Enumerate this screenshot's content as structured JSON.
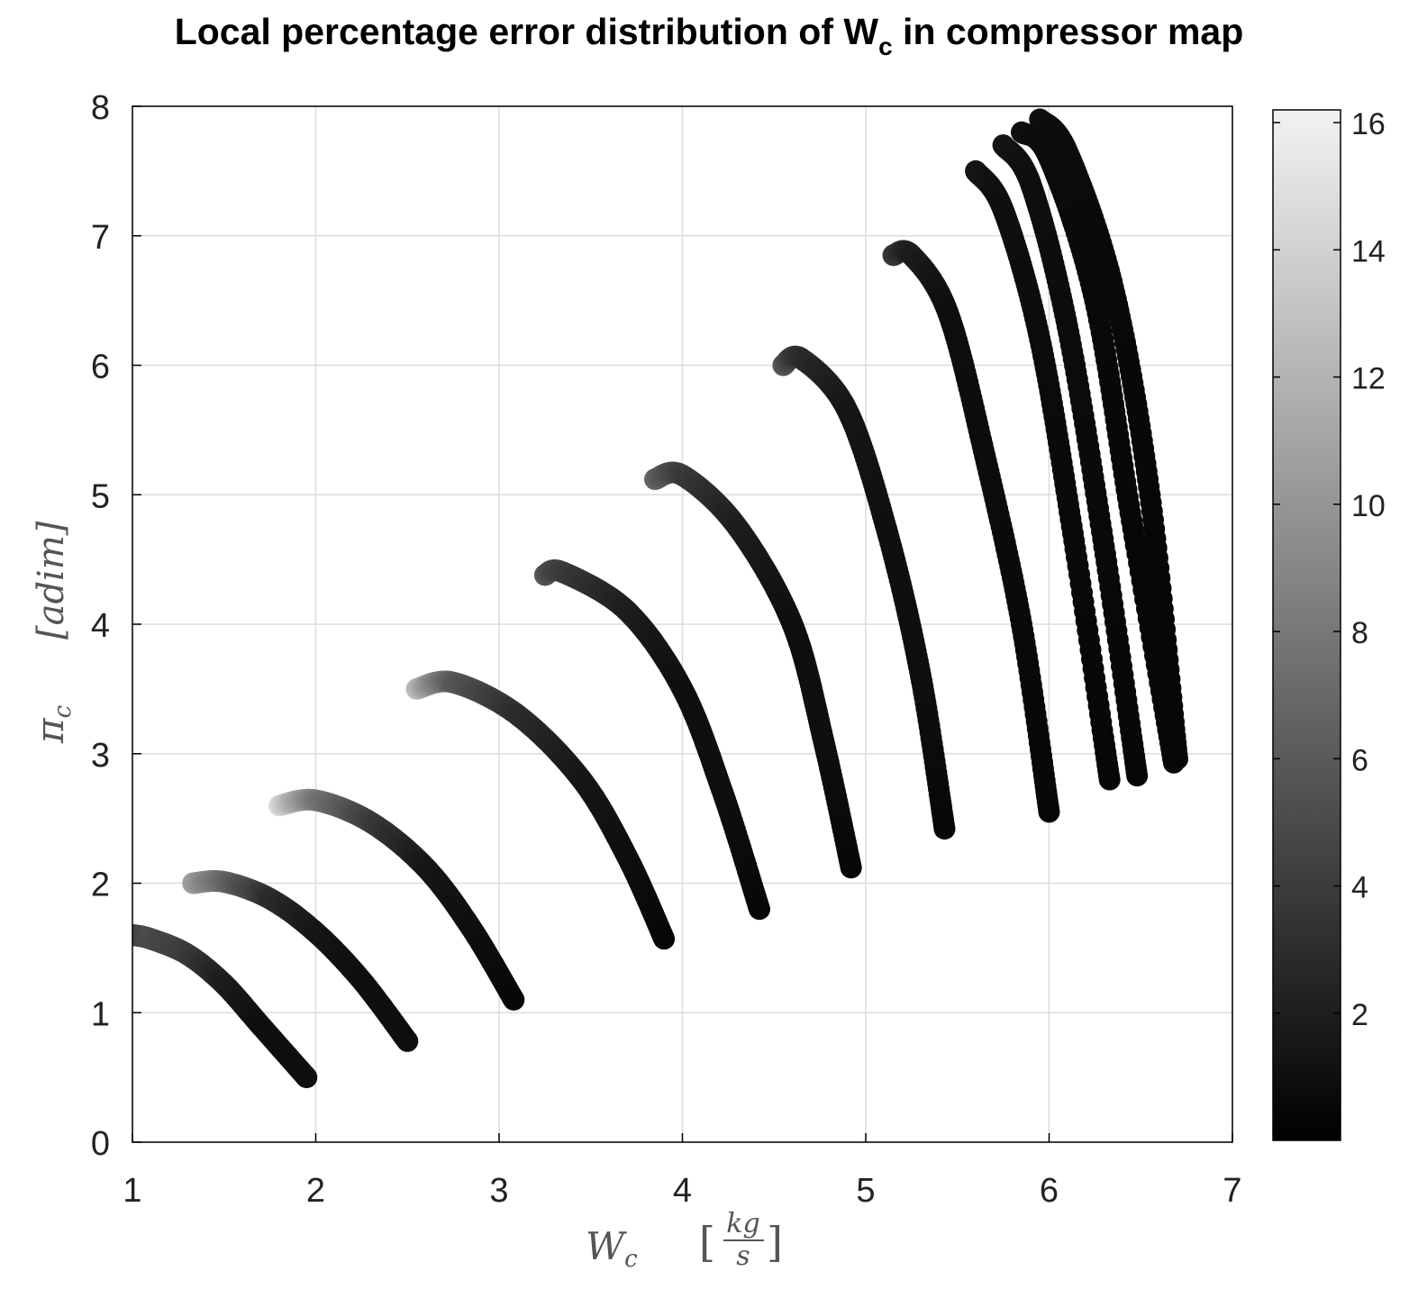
{
  "chart_data": {
    "type": "scatter",
    "title": "Local percentage error distribution of W",
    "title_subscript": "c",
    "title_suffix": " in compressor map",
    "xlabel": "W",
    "xlabel_subscript": "c",
    "xlabel_unit_numerator": "kg",
    "xlabel_unit_denominator": "s",
    "ylabel": "π",
    "ylabel_subscript": "c",
    "ylabel_unit": "[adim]",
    "xlim": [
      1,
      7
    ],
    "ylim": [
      0,
      8
    ],
    "xticks": [
      1,
      2,
      3,
      4,
      5,
      6,
      7
    ],
    "yticks": [
      0,
      1,
      2,
      3,
      4,
      5,
      6,
      7,
      8
    ],
    "grid": true,
    "colorbar": {
      "label_ticks": [
        2,
        4,
        6,
        8,
        10,
        12,
        14,
        16
      ],
      "range": [
        0,
        16.2
      ],
      "colormap": "gray",
      "low_color": "#000000",
      "high_color": "#f2f2f2"
    },
    "series": [
      {
        "x": [
          1.0,
          1.1,
          1.3,
          1.5,
          1.7,
          1.95
        ],
        "y": [
          1.6,
          1.57,
          1.45,
          1.22,
          0.9,
          0.5
        ],
        "error": [
          4,
          5,
          4,
          2,
          1,
          1
        ]
      },
      {
        "x": [
          1.33,
          1.5,
          1.75,
          2.0,
          2.25,
          2.5
        ],
        "y": [
          2.0,
          2.01,
          1.88,
          1.62,
          1.25,
          0.78
        ],
        "error": [
          11,
          7,
          3,
          1.5,
          1,
          1
        ]
      },
      {
        "x": [
          1.8,
          2.0,
          2.3,
          2.6,
          2.85,
          3.08
        ],
        "y": [
          2.6,
          2.64,
          2.47,
          2.12,
          1.65,
          1.1
        ],
        "error": [
          15,
          8,
          4,
          1.5,
          1,
          0.5
        ]
      },
      {
        "x": [
          2.55,
          2.75,
          3.1,
          3.45,
          3.7,
          3.9
        ],
        "y": [
          3.5,
          3.55,
          3.3,
          2.8,
          2.2,
          1.57
        ],
        "error": [
          13,
          6,
          3,
          1.5,
          1,
          0.5
        ]
      },
      {
        "x": [
          3.25,
          3.35,
          3.7,
          4.0,
          4.22,
          4.42
        ],
        "y": [
          4.38,
          4.4,
          4.1,
          3.5,
          2.7,
          1.8
        ],
        "error": [
          6,
          4,
          2,
          1,
          1,
          0.5
        ]
      },
      {
        "x": [
          3.85,
          4.0,
          4.3,
          4.6,
          4.77,
          4.92
        ],
        "y": [
          5.12,
          5.15,
          4.75,
          4.0,
          3.1,
          2.12
        ],
        "error": [
          7,
          4,
          2,
          1,
          1,
          0.5
        ]
      },
      {
        "x": [
          4.55,
          4.65,
          4.9,
          5.12,
          5.3,
          5.43
        ],
        "y": [
          6.0,
          6.05,
          5.65,
          4.7,
          3.6,
          2.42
        ],
        "error": [
          6,
          3,
          1.5,
          1,
          1,
          0.5
        ]
      },
      {
        "x": [
          5.15,
          5.25,
          5.45,
          5.65,
          5.85,
          6.0
        ],
        "y": [
          6.85,
          6.85,
          6.4,
          5.3,
          4.0,
          2.55
        ],
        "error": [
          4,
          2,
          1,
          0.8,
          0.6,
          0.5
        ]
      },
      {
        "x": [
          5.6,
          5.75,
          5.95,
          6.13,
          6.33
        ],
        "y": [
          7.5,
          7.2,
          6.2,
          4.7,
          2.8
        ],
        "error": [
          1.5,
          1,
          0.8,
          0.6,
          0.5
        ]
      },
      {
        "x": [
          5.75,
          5.9,
          6.1,
          6.3,
          6.48
        ],
        "y": [
          7.7,
          7.4,
          6.3,
          4.6,
          2.83
        ],
        "error": [
          1.5,
          1,
          0.8,
          0.6,
          0.5
        ]
      },
      {
        "x": [
          5.85,
          6.0,
          6.25,
          6.45,
          6.68
        ],
        "y": [
          7.8,
          7.6,
          6.5,
          4.8,
          2.93
        ],
        "error": [
          1,
          0.8,
          0.6,
          0.5,
          0.5
        ]
      },
      {
        "x": [
          5.95,
          6.1,
          6.35,
          6.55,
          6.7
        ],
        "y": [
          7.9,
          7.65,
          6.6,
          5.0,
          2.96
        ],
        "error": [
          1,
          0.8,
          0.6,
          0.5,
          0.5
        ]
      }
    ]
  }
}
